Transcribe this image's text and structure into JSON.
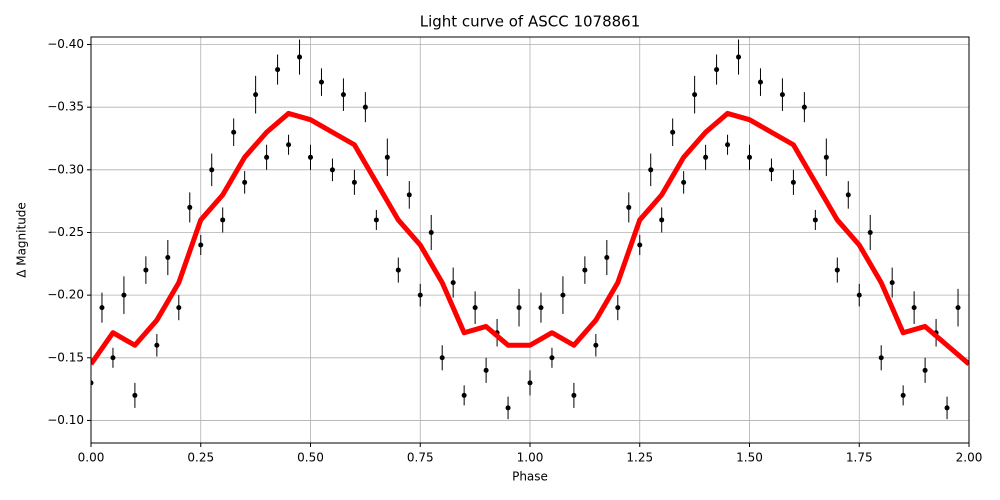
{
  "chart_data": {
    "type": "errorbar-line",
    "title": "Light curve of ASCC 1078861",
    "x_label": "Phase",
    "y_label": "Δ Magnitude",
    "xlim": [
      0,
      2
    ],
    "ylim": [
      -0.082,
      -0.406
    ],
    "xticks": [
      {
        "value": 0,
        "label": "0.00"
      },
      {
        "value": 0.25,
        "label": "0.25"
      },
      {
        "value": 0.5,
        "label": "0.50"
      },
      {
        "value": 0.75,
        "label": "0.75"
      },
      {
        "value": 1,
        "label": "1.00"
      },
      {
        "value": 1.25,
        "label": "1.25"
      },
      {
        "value": 1.5,
        "label": "1.50"
      },
      {
        "value": 1.75,
        "label": "1.75"
      },
      {
        "value": 2,
        "label": "2.00"
      }
    ],
    "yticks": [
      {
        "value": -0.1,
        "label": "−0.10"
      },
      {
        "value": -0.15,
        "label": "−0.15"
      },
      {
        "value": -0.2,
        "label": "−0.20"
      },
      {
        "value": -0.25,
        "label": "−0.25"
      },
      {
        "value": -0.3,
        "label": "−0.30"
      },
      {
        "value": -0.35,
        "label": "−0.35"
      },
      {
        "value": -0.4,
        "label": "−0.40"
      }
    ],
    "grid": true,
    "points": {
      "color": "#000000",
      "x": [
        0,
        0.025,
        0.05,
        0.075,
        0.1,
        0.125,
        0.15,
        0.175,
        0.2,
        0.225,
        0.25,
        0.275,
        0.3,
        0.325,
        0.35,
        0.375,
        0.4,
        0.425,
        0.45,
        0.475,
        0.5,
        0.525,
        0.55,
        0.575,
        0.6,
        0.625,
        0.65,
        0.675,
        0.7,
        0.725,
        0.75,
        0.775,
        0.8,
        0.825,
        0.85,
        0.875,
        0.9,
        0.925,
        0.95,
        0.975,
        1,
        1.025,
        1.05,
        1.075,
        1.1,
        1.125,
        1.15,
        1.175,
        1.2,
        1.225,
        1.25,
        1.275,
        1.3,
        1.325,
        1.35,
        1.375,
        1.4,
        1.425,
        1.45,
        1.475,
        1.5,
        1.525,
        1.55,
        1.575,
        1.6,
        1.625,
        1.65,
        1.675,
        1.7,
        1.725,
        1.75,
        1.775,
        1.8,
        1.825,
        1.85,
        1.875,
        1.9,
        1.925,
        1.95,
        1.975
      ],
      "values": [
        -0.13,
        -0.19,
        -0.15,
        -0.2,
        -0.12,
        -0.22,
        -0.16,
        -0.23,
        -0.19,
        -0.27,
        -0.24,
        -0.3,
        -0.26,
        -0.33,
        -0.29,
        -0.36,
        -0.31,
        -0.38,
        -0.32,
        -0.39,
        -0.31,
        -0.37,
        -0.3,
        -0.36,
        -0.29,
        -0.35,
        -0.26,
        -0.31,
        -0.22,
        -0.28,
        -0.2,
        -0.25,
        -0.15,
        -0.21,
        -0.12,
        -0.19,
        -0.14,
        -0.17,
        -0.11,
        -0.19,
        -0.13,
        -0.19,
        -0.15,
        -0.2,
        -0.12,
        -0.22,
        -0.16,
        -0.23,
        -0.19,
        -0.27,
        -0.24,
        -0.3,
        -0.26,
        -0.33,
        -0.29,
        -0.36,
        -0.31,
        -0.38,
        -0.32,
        -0.39,
        -0.31,
        -0.37,
        -0.3,
        -0.36,
        -0.29,
        -0.35,
        -0.26,
        -0.31,
        -0.22,
        -0.28,
        -0.2,
        -0.25,
        -0.15,
        -0.21,
        -0.12,
        -0.19,
        -0.14,
        -0.17,
        -0.11,
        -0.19
      ],
      "errors": [
        0.01,
        0.012,
        0.008,
        0.015,
        0.01,
        0.011,
        0.009,
        0.014,
        0.01,
        0.012,
        0.008,
        0.013,
        0.01,
        0.011,
        0.009,
        0.015,
        0.01,
        0.012,
        0.008,
        0.014,
        0.01,
        0.011,
        0.009,
        0.013,
        0.01,
        0.012,
        0.008,
        0.015,
        0.01,
        0.011,
        0.009,
        0.014,
        0.01,
        0.012,
        0.008,
        0.013,
        0.01,
        0.011,
        0.009,
        0.015,
        0.01,
        0.012,
        0.008,
        0.015,
        0.01,
        0.011,
        0.009,
        0.014,
        0.01,
        0.012,
        0.008,
        0.013,
        0.01,
        0.011,
        0.009,
        0.015,
        0.01,
        0.012,
        0.008,
        0.014,
        0.01,
        0.011,
        0.009,
        0.013,
        0.01,
        0.012,
        0.008,
        0.015,
        0.01,
        0.011,
        0.009,
        0.014,
        0.01,
        0.012,
        0.008,
        0.013,
        0.01,
        0.011,
        0.009,
        0.015
      ]
    },
    "curve": {
      "color": "#ff0000",
      "x": [
        0,
        0.05,
        0.1,
        0.15,
        0.2,
        0.25,
        0.3,
        0.35,
        0.4,
        0.45,
        0.5,
        0.55,
        0.6,
        0.65,
        0.7,
        0.75,
        0.8,
        0.85,
        0.9,
        0.95,
        1,
        1.05,
        1.1,
        1.15,
        1.2,
        1.25,
        1.3,
        1.35,
        1.4,
        1.45,
        1.5,
        1.55,
        1.6,
        1.65,
        1.7,
        1.75,
        1.8,
        1.85,
        1.9,
        1.95,
        2
      ],
      "values": [
        -0.145,
        -0.17,
        -0.16,
        -0.18,
        -0.21,
        -0.26,
        -0.28,
        -0.31,
        -0.33,
        -0.345,
        -0.34,
        -0.33,
        -0.32,
        -0.29,
        -0.26,
        -0.24,
        -0.21,
        -0.17,
        -0.175,
        -0.16,
        -0.16,
        -0.17,
        -0.16,
        -0.18,
        -0.21,
        -0.26,
        -0.28,
        -0.31,
        -0.33,
        -0.345,
        -0.34,
        -0.33,
        -0.32,
        -0.29,
        -0.26,
        -0.24,
        -0.21,
        -0.17,
        -0.175,
        -0.16,
        -0.145
      ]
    }
  }
}
